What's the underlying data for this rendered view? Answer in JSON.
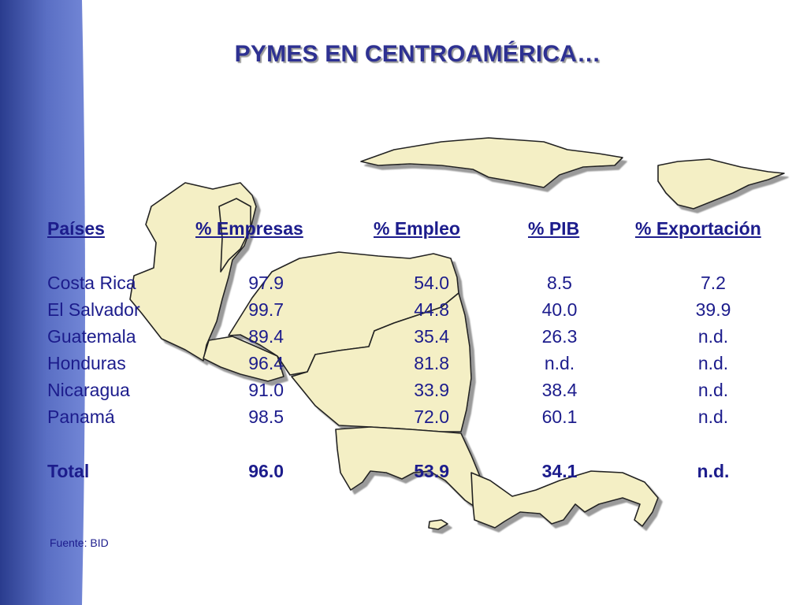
{
  "slide": {
    "title": "PYMES EN CENTROAMÉRICA…",
    "source": "Fuente: BID"
  },
  "table": {
    "headers": [
      "Países",
      "% Empresas",
      "% Empleo",
      "% PIB",
      "% Exportación"
    ],
    "rows": [
      [
        "Costa Rica",
        "97.9",
        "54.0",
        "8.5",
        "7.2"
      ],
      [
        "El Salvador",
        "99.7",
        "44.8",
        "40.0",
        "39.9"
      ],
      [
        "Guatemala",
        "89.4",
        "35.4",
        "26.3",
        "n.d."
      ],
      [
        "Honduras",
        "96.4",
        "81.8",
        "n.d.",
        "n.d."
      ],
      [
        "Nicaragua",
        "91.0",
        "33.9",
        "38.4",
        "n.d."
      ],
      [
        "Panamá",
        "98.5",
        "72.0",
        "60.1",
        "n.d."
      ]
    ],
    "total": [
      "Total",
      "96.0",
      "53.9",
      "34.1",
      "n.d."
    ]
  },
  "colors": {
    "text": "#1c1c8c",
    "title": "#2e3192",
    "band_dark": "#2c3f94",
    "band_light": "#6a7fd0",
    "map_fill": "#f4efc5",
    "map_outline": "#222222"
  },
  "map_icon": "central-america-map"
}
